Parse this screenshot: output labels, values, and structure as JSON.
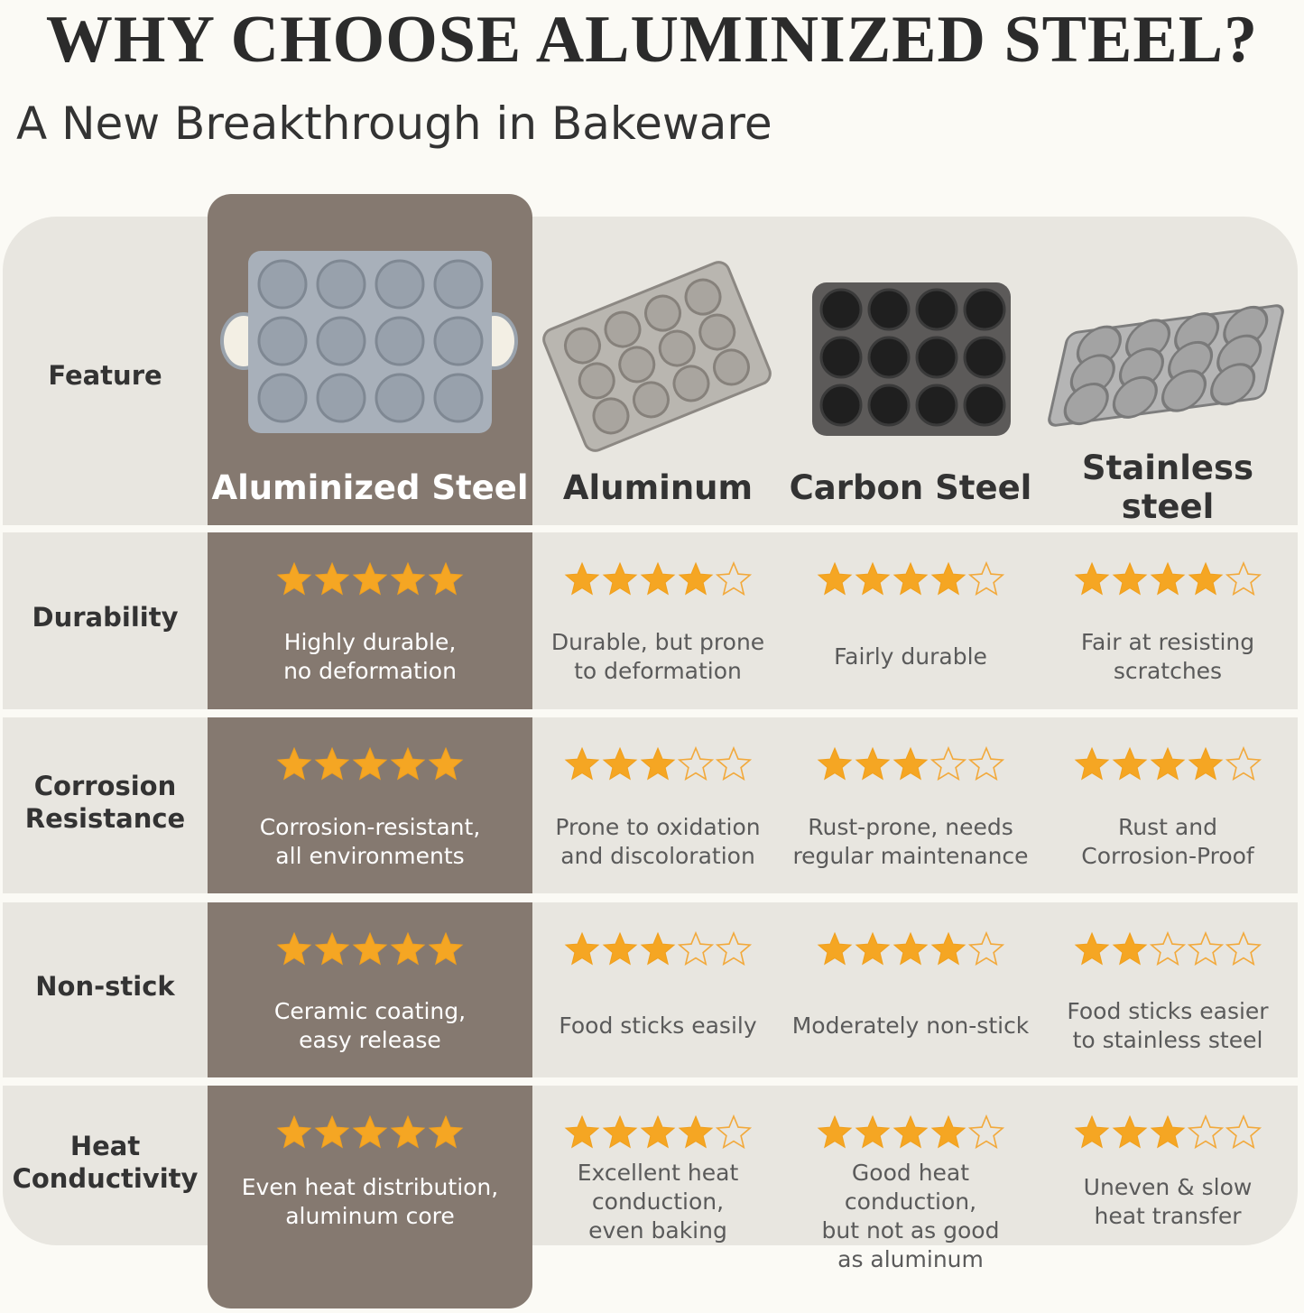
{
  "header": {
    "title": "WHY CHOOSE ALUMINIZED STEEL?",
    "subtitle": "A New Breakthrough in Bakeware"
  },
  "table": {
    "feature_header": "Feature",
    "rating_max": 5,
    "columns": [
      "Aluminized Steel",
      "Aluminum",
      "Carbon Steel",
      "Stainless\nsteel"
    ],
    "rows": [
      {
        "feature": "Durability",
        "ratings": [
          5,
          4,
          4,
          4
        ],
        "notes": [
          "Highly durable,\nno deformation",
          "Durable, but prone\nto deformation",
          "Fairly durable",
          "Fair at resisting\nscratches"
        ]
      },
      {
        "feature": "Corrosion\nResistance",
        "ratings": [
          5,
          3,
          3,
          4
        ],
        "notes": [
          "Corrosion-resistant,\nall environments",
          "Prone to oxidation\nand discoloration",
          "Rust-prone, needs\nregular maintenance",
          "Rust and\nCorrosion-Proof"
        ]
      },
      {
        "feature": "Non-stick",
        "ratings": [
          5,
          3,
          4,
          2
        ],
        "notes": [
          "Ceramic coating,\neasy release",
          "Food sticks easily",
          "Moderately non-stick",
          "Food sticks easier\nto stainless steel"
        ]
      },
      {
        "feature": "Heat\nConductivity",
        "ratings": [
          5,
          4,
          4,
          3
        ],
        "notes": [
          "Even heat distribution,\naluminum core",
          "Excellent heat\nconduction,\neven baking",
          "Good heat conduction,\nbut not as good\nas aluminum",
          "Uneven & slow\nheat transfer"
        ]
      }
    ]
  }
}
